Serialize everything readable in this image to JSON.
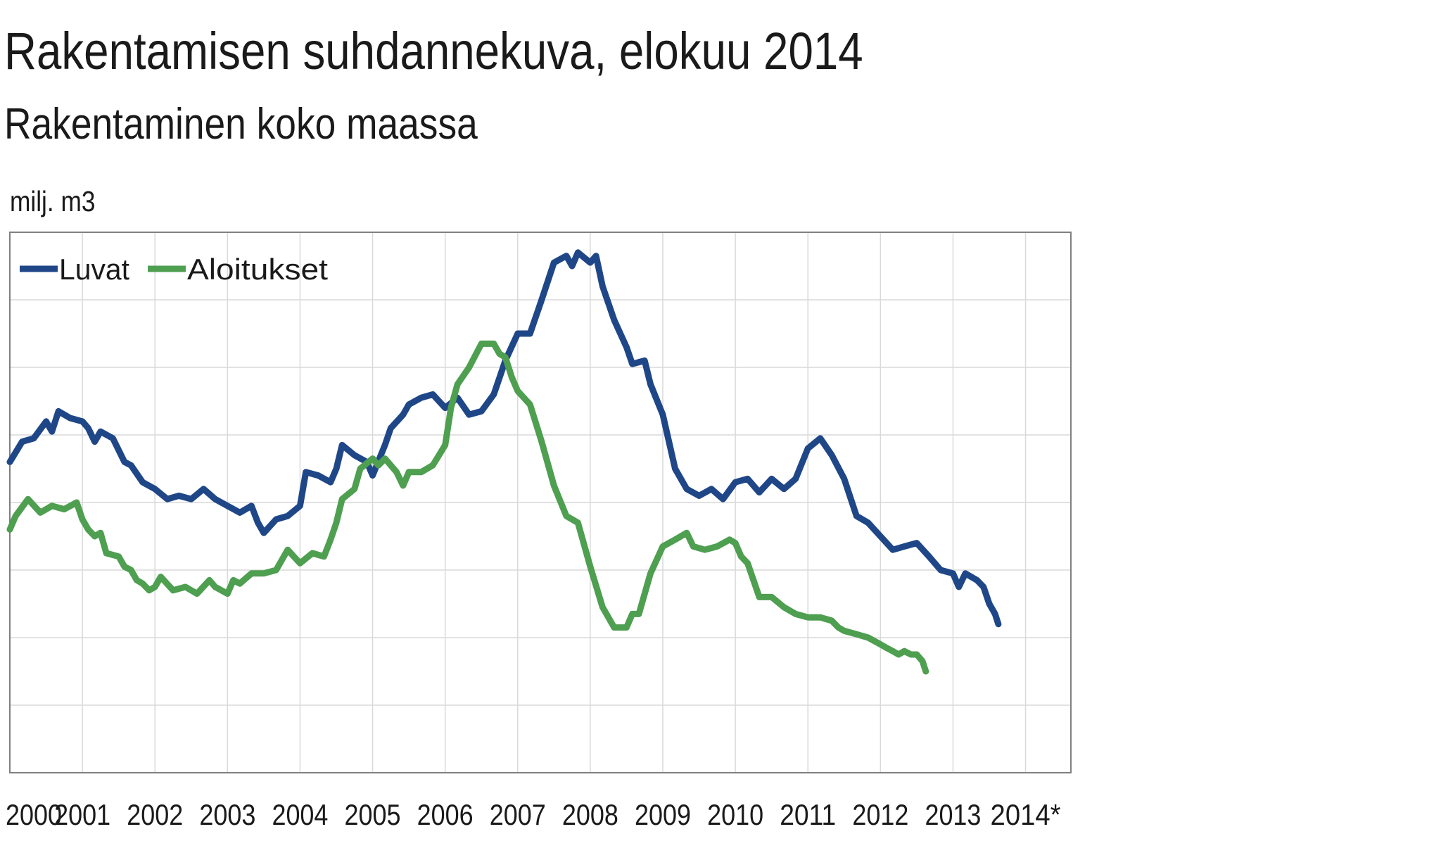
{
  "header": {
    "title": "Rakentamisen suhdannekuva, elokuu 2014",
    "subtitle": "Rakentaminen koko maassa",
    "unit": "milj. m3"
  },
  "colors": {
    "luvat": "#1f4788",
    "aloitukset": "#4e9f50",
    "grid": "#d9d9d9",
    "frame": "#808080"
  },
  "chart_data": {
    "type": "line",
    "title": "Rakentamisen suhdannekuva, elokuu 2014",
    "subtitle": "Rakentaminen koko maassa",
    "ylabel": "milj. m3",
    "xlabel": "",
    "xlim": [
      2000,
      2014.625
    ],
    "ylim": [
      0,
      8
    ],
    "grid": true,
    "legend": "top-left",
    "x_ticks": [
      "2000",
      "2001",
      "2002",
      "2003",
      "2004",
      "2005",
      "2006",
      "2007",
      "2008",
      "2009",
      "2010",
      "2011",
      "2012",
      "2013",
      "2014*"
    ],
    "y_tick_labels_visible": false,
    "series": [
      {
        "name": "Luvat",
        "points": [
          [
            2000.0,
            4.6
          ],
          [
            2000.17,
            4.9
          ],
          [
            2000.33,
            4.95
          ],
          [
            2000.5,
            5.2
          ],
          [
            2000.58,
            5.05
          ],
          [
            2000.67,
            5.35
          ],
          [
            2000.83,
            5.25
          ],
          [
            2001.0,
            5.2
          ],
          [
            2001.08,
            5.1
          ],
          [
            2001.17,
            4.9
          ],
          [
            2001.25,
            5.05
          ],
          [
            2001.42,
            4.95
          ],
          [
            2001.58,
            4.6
          ],
          [
            2001.67,
            4.55
          ],
          [
            2001.83,
            4.3
          ],
          [
            2002.0,
            4.2
          ],
          [
            2002.17,
            4.05
          ],
          [
            2002.33,
            4.1
          ],
          [
            2002.5,
            4.05
          ],
          [
            2002.67,
            4.2
          ],
          [
            2002.83,
            4.05
          ],
          [
            2003.0,
            3.95
          ],
          [
            2003.17,
            3.85
          ],
          [
            2003.33,
            3.95
          ],
          [
            2003.42,
            3.7
          ],
          [
            2003.5,
            3.55
          ],
          [
            2003.67,
            3.75
          ],
          [
            2003.83,
            3.8
          ],
          [
            2004.0,
            3.95
          ],
          [
            2004.08,
            4.45
          ],
          [
            2004.25,
            4.4
          ],
          [
            2004.42,
            4.3
          ],
          [
            2004.5,
            4.5
          ],
          [
            2004.58,
            4.85
          ],
          [
            2004.75,
            4.7
          ],
          [
            2004.92,
            4.6
          ],
          [
            2005.0,
            4.4
          ],
          [
            2005.17,
            4.85
          ],
          [
            2005.25,
            5.1
          ],
          [
            2005.42,
            5.3
          ],
          [
            2005.5,
            5.45
          ],
          [
            2005.67,
            5.55
          ],
          [
            2005.83,
            5.6
          ],
          [
            2006.0,
            5.4
          ],
          [
            2006.17,
            5.55
          ],
          [
            2006.33,
            5.3
          ],
          [
            2006.5,
            5.35
          ],
          [
            2006.67,
            5.6
          ],
          [
            2006.83,
            6.1
          ],
          [
            2007.0,
            6.5
          ],
          [
            2007.17,
            6.5
          ],
          [
            2007.33,
            7.0
          ],
          [
            2007.5,
            7.55
          ],
          [
            2007.67,
            7.65
          ],
          [
            2007.75,
            7.5
          ],
          [
            2007.83,
            7.7
          ],
          [
            2008.0,
            7.55
          ],
          [
            2008.08,
            7.65
          ],
          [
            2008.17,
            7.2
          ],
          [
            2008.33,
            6.7
          ],
          [
            2008.5,
            6.3
          ],
          [
            2008.58,
            6.05
          ],
          [
            2008.75,
            6.1
          ],
          [
            2008.83,
            5.75
          ],
          [
            2009.0,
            5.3
          ],
          [
            2009.17,
            4.5
          ],
          [
            2009.33,
            4.2
          ],
          [
            2009.5,
            4.1
          ],
          [
            2009.67,
            4.2
          ],
          [
            2009.83,
            4.05
          ],
          [
            2010.0,
            4.3
          ],
          [
            2010.17,
            4.35
          ],
          [
            2010.33,
            4.15
          ],
          [
            2010.5,
            4.35
          ],
          [
            2010.67,
            4.2
          ],
          [
            2010.83,
            4.35
          ],
          [
            2011.0,
            4.8
          ],
          [
            2011.17,
            4.95
          ],
          [
            2011.33,
            4.7
          ],
          [
            2011.5,
            4.35
          ],
          [
            2011.67,
            3.8
          ],
          [
            2011.83,
            3.7
          ],
          [
            2012.0,
            3.5
          ],
          [
            2012.17,
            3.3
          ],
          [
            2012.33,
            3.35
          ],
          [
            2012.5,
            3.4
          ],
          [
            2012.67,
            3.2
          ],
          [
            2012.83,
            3.0
          ],
          [
            2013.0,
            2.95
          ],
          [
            2013.08,
            2.75
          ],
          [
            2013.17,
            2.95
          ],
          [
            2013.33,
            2.85
          ],
          [
            2013.42,
            2.75
          ],
          [
            2013.5,
            2.5
          ],
          [
            2013.58,
            2.35
          ],
          [
            2013.625,
            2.2
          ]
        ]
      },
      {
        "name": "Aloitukset",
        "points": [
          [
            2000.0,
            3.6
          ],
          [
            2000.08,
            3.8
          ],
          [
            2000.25,
            4.05
          ],
          [
            2000.42,
            3.85
          ],
          [
            2000.58,
            3.95
          ],
          [
            2000.75,
            3.9
          ],
          [
            2000.92,
            4.0
          ],
          [
            2001.0,
            3.75
          ],
          [
            2001.08,
            3.6
          ],
          [
            2001.17,
            3.5
          ],
          [
            2001.25,
            3.55
          ],
          [
            2001.33,
            3.25
          ],
          [
            2001.5,
            3.2
          ],
          [
            2001.58,
            3.05
          ],
          [
            2001.67,
            3.0
          ],
          [
            2001.75,
            2.85
          ],
          [
            2001.83,
            2.8
          ],
          [
            2001.92,
            2.7
          ],
          [
            2002.0,
            2.75
          ],
          [
            2002.08,
            2.9
          ],
          [
            2002.25,
            2.7
          ],
          [
            2002.42,
            2.75
          ],
          [
            2002.58,
            2.65
          ],
          [
            2002.75,
            2.85
          ],
          [
            2002.83,
            2.75
          ],
          [
            2003.0,
            2.65
          ],
          [
            2003.08,
            2.85
          ],
          [
            2003.17,
            2.8
          ],
          [
            2003.33,
            2.95
          ],
          [
            2003.5,
            2.95
          ],
          [
            2003.67,
            3.0
          ],
          [
            2003.83,
            3.3
          ],
          [
            2004.0,
            3.1
          ],
          [
            2004.17,
            3.25
          ],
          [
            2004.33,
            3.2
          ],
          [
            2004.42,
            3.45
          ],
          [
            2004.5,
            3.7
          ],
          [
            2004.58,
            4.05
          ],
          [
            2004.75,
            4.2
          ],
          [
            2004.83,
            4.5
          ],
          [
            2005.0,
            4.65
          ],
          [
            2005.08,
            4.55
          ],
          [
            2005.17,
            4.65
          ],
          [
            2005.33,
            4.45
          ],
          [
            2005.42,
            4.25
          ],
          [
            2005.5,
            4.45
          ],
          [
            2005.67,
            4.45
          ],
          [
            2005.83,
            4.55
          ],
          [
            2006.0,
            4.85
          ],
          [
            2006.08,
            5.4
          ],
          [
            2006.17,
            5.75
          ],
          [
            2006.33,
            6.0
          ],
          [
            2006.5,
            6.35
          ],
          [
            2006.67,
            6.35
          ],
          [
            2006.75,
            6.2
          ],
          [
            2006.83,
            6.15
          ],
          [
            2006.92,
            5.85
          ],
          [
            2007.0,
            5.65
          ],
          [
            2007.17,
            5.45
          ],
          [
            2007.33,
            4.9
          ],
          [
            2007.5,
            4.25
          ],
          [
            2007.67,
            3.8
          ],
          [
            2007.83,
            3.7
          ],
          [
            2008.0,
            3.05
          ],
          [
            2008.17,
            2.45
          ],
          [
            2008.33,
            2.15
          ],
          [
            2008.5,
            2.15
          ],
          [
            2008.58,
            2.35
          ],
          [
            2008.67,
            2.35
          ],
          [
            2008.83,
            2.95
          ],
          [
            2009.0,
            3.35
          ],
          [
            2009.17,
            3.45
          ],
          [
            2009.33,
            3.55
          ],
          [
            2009.42,
            3.35
          ],
          [
            2009.58,
            3.3
          ],
          [
            2009.75,
            3.35
          ],
          [
            2009.92,
            3.45
          ],
          [
            2010.0,
            3.4
          ],
          [
            2010.08,
            3.2
          ],
          [
            2010.17,
            3.1
          ],
          [
            2010.33,
            2.6
          ],
          [
            2010.5,
            2.6
          ],
          [
            2010.67,
            2.45
          ],
          [
            2010.83,
            2.35
          ],
          [
            2011.0,
            2.3
          ],
          [
            2011.17,
            2.3
          ],
          [
            2011.33,
            2.25
          ],
          [
            2011.42,
            2.15
          ],
          [
            2011.5,
            2.1
          ],
          [
            2011.67,
            2.05
          ],
          [
            2011.83,
            2.0
          ],
          [
            2012.0,
            1.9
          ],
          [
            2012.08,
            1.85
          ],
          [
            2012.17,
            1.8
          ],
          [
            2012.25,
            1.75
          ],
          [
            2012.33,
            1.8
          ],
          [
            2012.42,
            1.75
          ],
          [
            2012.5,
            1.75
          ],
          [
            2012.58,
            1.65
          ],
          [
            2012.625,
            1.5
          ]
        ]
      }
    ]
  }
}
